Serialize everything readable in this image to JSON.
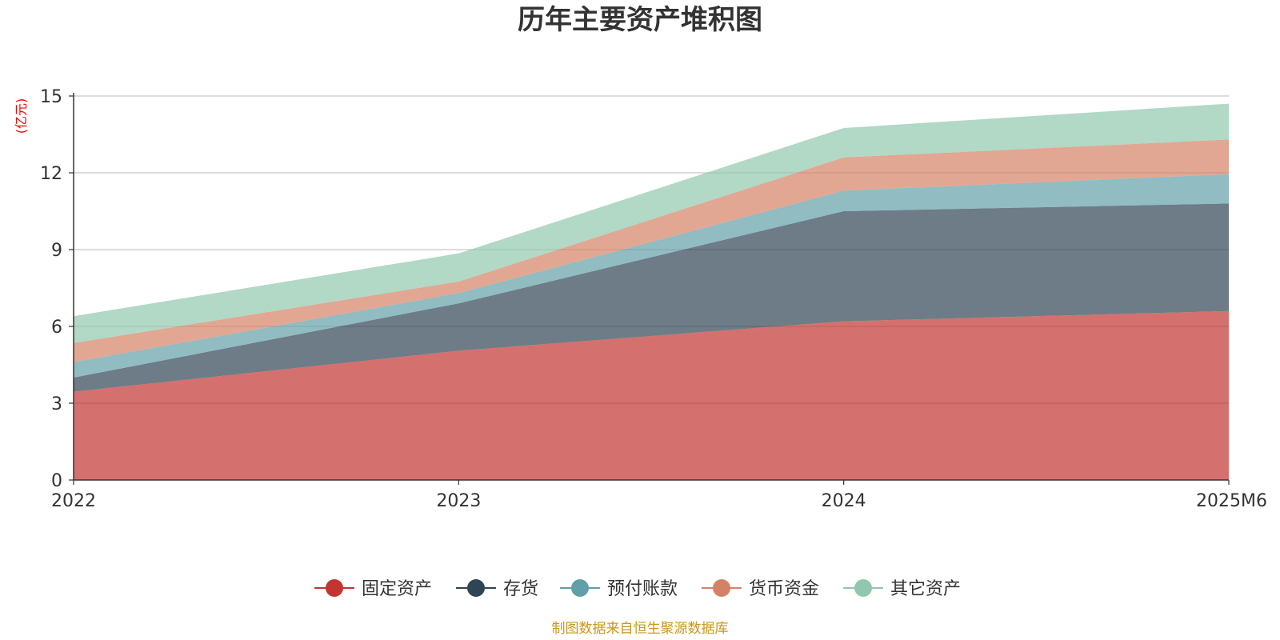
{
  "chart_data": {
    "type": "area",
    "stacked": true,
    "title": "历年主要资产堆积图",
    "ylabel": "(亿元)",
    "xlabel": "",
    "categories": [
      "2022",
      "2023",
      "2024",
      "2025M6"
    ],
    "ylim": [
      0,
      15
    ],
    "yticks": [
      0,
      3,
      6,
      9,
      12,
      15
    ],
    "grid": true,
    "legend_position": "bottom",
    "series": [
      {
        "name": "固定资产",
        "values": [
          3.45,
          5.05,
          6.2,
          6.6
        ],
        "color": "#c23531"
      },
      {
        "name": "存货",
        "values": [
          0.55,
          1.85,
          4.3,
          4.2
        ],
        "color": "#2f4554"
      },
      {
        "name": "预付账款",
        "values": [
          0.6,
          0.4,
          0.8,
          1.15
        ],
        "color": "#61a0a8"
      },
      {
        "name": "货币资金",
        "values": [
          0.75,
          0.45,
          1.3,
          1.35
        ],
        "color": "#d48265"
      },
      {
        "name": "其它资产",
        "values": [
          1.05,
          1.1,
          1.15,
          1.4
        ],
        "color": "#91c7ae"
      }
    ],
    "source_note": "制图数据来自恒生聚源数据库",
    "unit_color": "#ff0000",
    "source_color": "#c9971a"
  }
}
